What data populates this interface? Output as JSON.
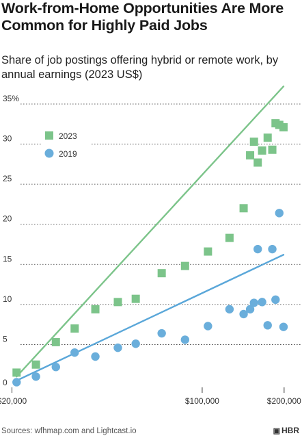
{
  "header": {
    "title": "Work-from-Home Opportunities Are More Common for Highly Paid Jobs",
    "subtitle": "Share of job postings offering hybrid or remote work, by annual earnings (2023 US$)"
  },
  "footer": {
    "source": "Sources: wfhmap.com and Lightcast.io",
    "brand": "HBR",
    "brand_icon": "hbr-logo-icon"
  },
  "colors": {
    "series_2023": "#7cc48a",
    "series_2019": "#6aaedb",
    "trend_2023": "#7cc48a",
    "trend_2019": "#5aa7d9"
  },
  "chart_data": {
    "type": "scatter",
    "title": "Work-from-Home Opportunities Are More Common for Highly Paid Jobs",
    "subtitle": "Share of job postings offering hybrid or remote work, by annual earnings (2023 US$)",
    "xlabel": "",
    "ylabel": "",
    "xscale": "log",
    "xlim": [
      18500,
      230000
    ],
    "ylim": [
      0,
      35
    ],
    "x_ticks": [
      {
        "value": 20000,
        "label": "$20,000"
      },
      {
        "value": 100000,
        "label": "$100,000"
      },
      {
        "value": 200000,
        "label": "$200,000"
      }
    ],
    "y_ticks": [
      {
        "value": 0,
        "label": "0"
      },
      {
        "value": 5,
        "label": "5"
      },
      {
        "value": 10,
        "label": "10"
      },
      {
        "value": 15,
        "label": "15"
      },
      {
        "value": 20,
        "label": "20"
      },
      {
        "value": 25,
        "label": "25"
      },
      {
        "value": 30,
        "label": "30"
      },
      {
        "value": 35,
        "label": "35%"
      }
    ],
    "grid": "horizontal dotted",
    "legend_position": "top-left",
    "series": [
      {
        "name": "2023",
        "marker": "square",
        "points": [
          {
            "x": 20800,
            "y": 1.5
          },
          {
            "x": 24500,
            "y": 2.5
          },
          {
            "x": 29000,
            "y": 5.3
          },
          {
            "x": 34000,
            "y": 7.0
          },
          {
            "x": 40500,
            "y": 9.4
          },
          {
            "x": 49000,
            "y": 10.3
          },
          {
            "x": 57000,
            "y": 10.7
          },
          {
            "x": 71000,
            "y": 13.9
          },
          {
            "x": 86500,
            "y": 14.8
          },
          {
            "x": 105000,
            "y": 16.6
          },
          {
            "x": 126000,
            "y": 18.3
          },
          {
            "x": 142000,
            "y": 22.0
          },
          {
            "x": 150000,
            "y": 28.6
          },
          {
            "x": 155000,
            "y": 30.3
          },
          {
            "x": 160000,
            "y": 27.7
          },
          {
            "x": 166000,
            "y": 29.2
          },
          {
            "x": 174000,
            "y": 30.8
          },
          {
            "x": 181000,
            "y": 29.3
          },
          {
            "x": 186000,
            "y": 32.6
          },
          {
            "x": 192000,
            "y": 32.4
          },
          {
            "x": 199000,
            "y": 32.1
          }
        ],
        "trend": {
          "x": [
            20800,
            199000
          ],
          "y": [
            1.0,
            37.2
          ]
        }
      },
      {
        "name": "2019",
        "marker": "circle",
        "points": [
          {
            "x": 20800,
            "y": 0.3
          },
          {
            "x": 24500,
            "y": 1.0
          },
          {
            "x": 29000,
            "y": 2.2
          },
          {
            "x": 34000,
            "y": 4.0
          },
          {
            "x": 40500,
            "y": 3.5
          },
          {
            "x": 49000,
            "y": 4.6
          },
          {
            "x": 57000,
            "y": 5.1
          },
          {
            "x": 71000,
            "y": 6.4
          },
          {
            "x": 86500,
            "y": 5.6
          },
          {
            "x": 105000,
            "y": 7.3
          },
          {
            "x": 126000,
            "y": 9.4
          },
          {
            "x": 142000,
            "y": 8.8
          },
          {
            "x": 150000,
            "y": 9.4
          },
          {
            "x": 155000,
            "y": 10.2
          },
          {
            "x": 160000,
            "y": 16.9
          },
          {
            "x": 166000,
            "y": 10.3
          },
          {
            "x": 174000,
            "y": 7.4
          },
          {
            "x": 181000,
            "y": 16.9
          },
          {
            "x": 186000,
            "y": 10.6
          },
          {
            "x": 192000,
            "y": 21.4
          },
          {
            "x": 199000,
            "y": 7.2
          }
        ],
        "trend": {
          "x": [
            20800,
            199000
          ],
          "y": [
            0.5,
            16.2
          ]
        }
      }
    ]
  }
}
